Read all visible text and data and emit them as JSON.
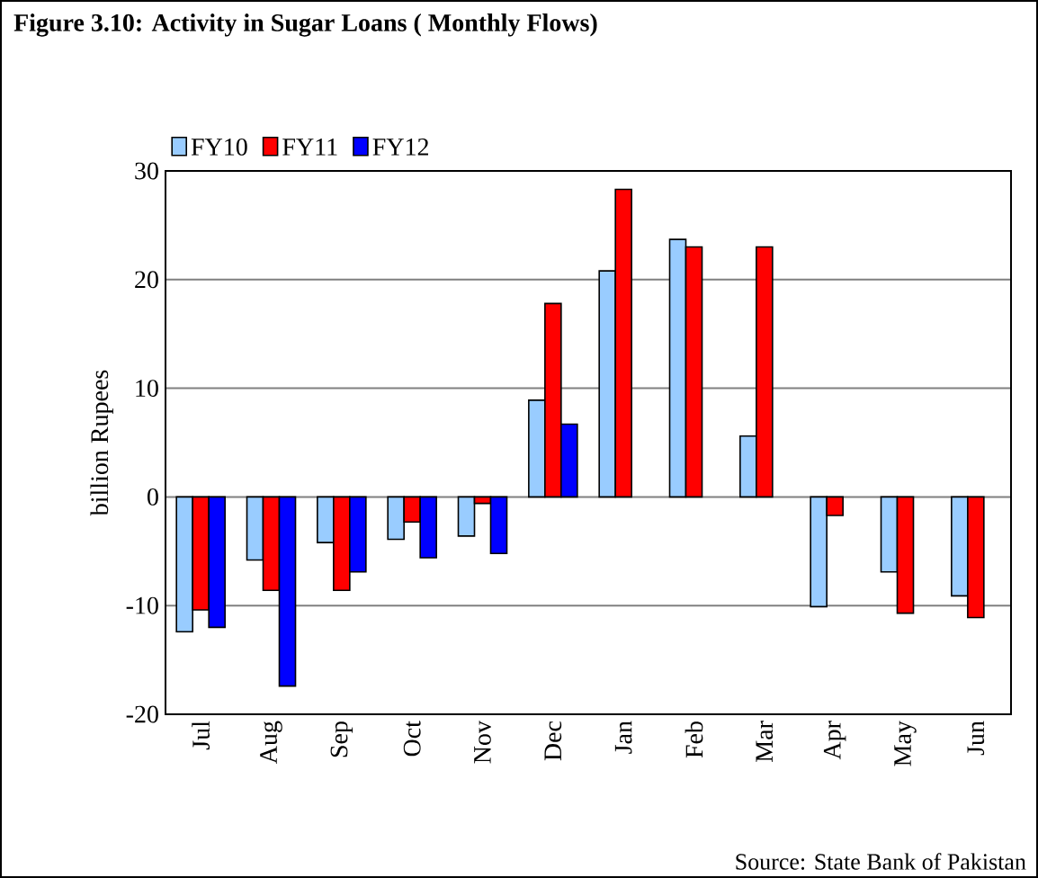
{
  "chart_data": {
    "type": "bar",
    "title": "**Figure 3.10: Activity in Sugar Loans ( Monthly Flows)**",
    "categories": [
      "Jul",
      "Aug",
      "Sep",
      "Oct",
      "Nov",
      "Dec",
      "Jan",
      "Feb",
      "Mar",
      "Apr",
      "May",
      "Jun"
    ],
    "series": [
      {
        "name": "FY10",
        "color": "#99ccff",
        "values": [
          -12.4,
          -5.8,
          -4.2,
          -3.9,
          -3.6,
          8.9,
          20.8,
          23.7,
          5.6,
          -10.1,
          -6.9,
          -9.1
        ]
      },
      {
        "name": "FY11",
        "color": "#ff0000",
        "values": [
          -10.4,
          -8.6,
          -8.6,
          -2.3,
          -0.6,
          17.8,
          28.3,
          23.0,
          23.0,
          -1.7,
          -10.7,
          -11.1
        ]
      },
      {
        "name": "FY12",
        "color": "#0000ff",
        "values": [
          -12.0,
          -17.4,
          -6.9,
          -5.6,
          -5.2,
          6.7,
          null,
          null,
          null,
          null,
          null,
          null
        ]
      }
    ],
    "ylabel": "billion Rupees",
    "ylim": [
      -20,
      30
    ],
    "yticks": [
      -20,
      -10,
      0,
      10,
      20,
      30
    ],
    "grid": "y",
    "legend": "top left",
    "annotations": [
      "Source: State Bank of Pakistan"
    ]
  }
}
